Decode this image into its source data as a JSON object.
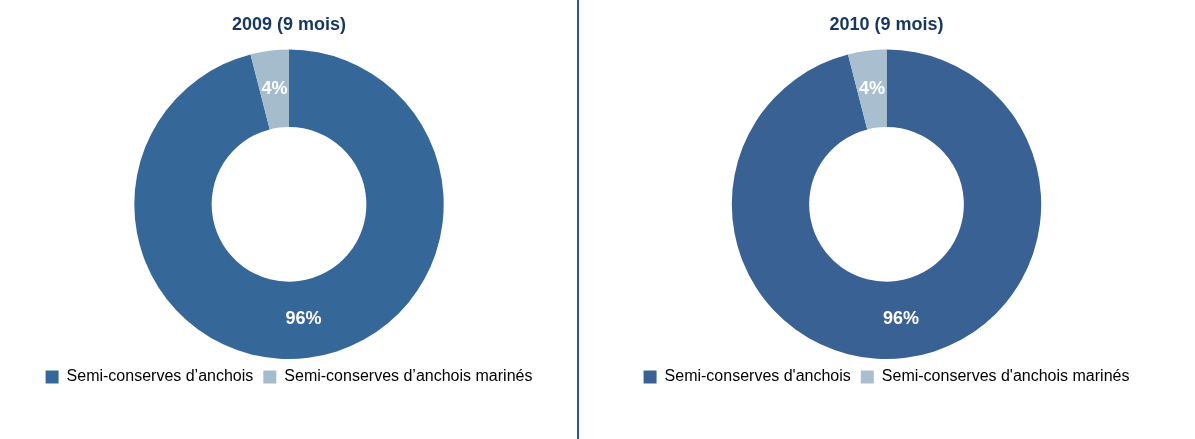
{
  "chart_data": [
    {
      "type": "donut",
      "title": "2009 (9 mois)",
      "categories": [
        "Semi-conserves d’anchois",
        "Semi-conserves d’anchois marinés"
      ],
      "values": [
        96,
        4
      ],
      "value_labels": [
        "96%",
        "4%"
      ],
      "colors": [
        "#356899",
        "#a5bccd"
      ],
      "legend": "bottom"
    },
    {
      "type": "donut",
      "title": "2010 (9 mois)",
      "categories": [
        "Semi-conserves d'anchois",
        "Semi-conserves d'anchois marinés"
      ],
      "values": [
        96,
        4
      ],
      "value_labels": [
        "96%",
        "4%"
      ],
      "colors": [
        "#3a6193",
        "#a9bfcf"
      ],
      "legend": "bottom"
    }
  ]
}
